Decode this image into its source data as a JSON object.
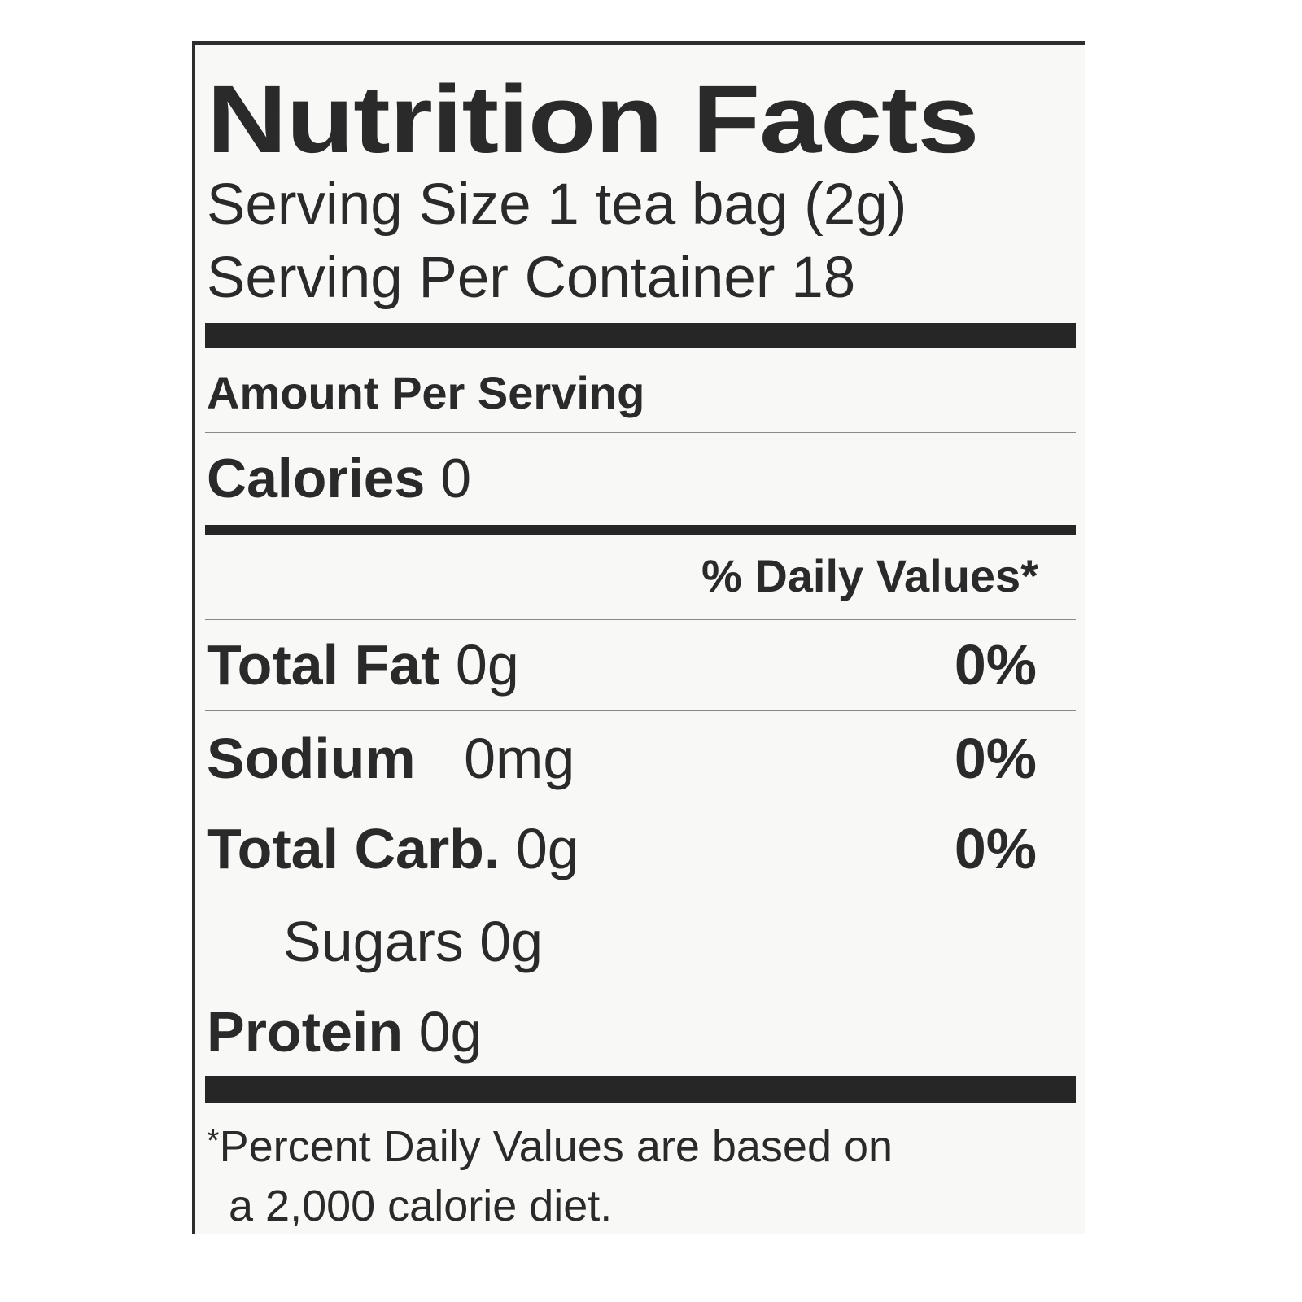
{
  "title": "Nutrition Facts",
  "serving_size": "Serving Size 1 tea bag (2g)",
  "servings_per_container": "Serving Per Container 18",
  "amount_per_serving": "Amount Per Serving",
  "calories": {
    "label": "Calories",
    "value": "0"
  },
  "daily_values_header": "% Daily Values*",
  "nutrients": [
    {
      "label": "Total Fat",
      "amount": "0g",
      "dv": "0%"
    },
    {
      "label": "Sodium",
      "amount": "0mg",
      "dv": "0%"
    },
    {
      "label": "Total Carb.",
      "amount": "0g",
      "dv": "0%"
    },
    {
      "label": "Sugars",
      "amount": "0g"
    },
    {
      "label": "Protein",
      "amount": "0g"
    }
  ],
  "footnote": {
    "asterisk": "*",
    "line1": "Percent Daily Values are based on",
    "line2": "a 2,000 calorie diet."
  }
}
